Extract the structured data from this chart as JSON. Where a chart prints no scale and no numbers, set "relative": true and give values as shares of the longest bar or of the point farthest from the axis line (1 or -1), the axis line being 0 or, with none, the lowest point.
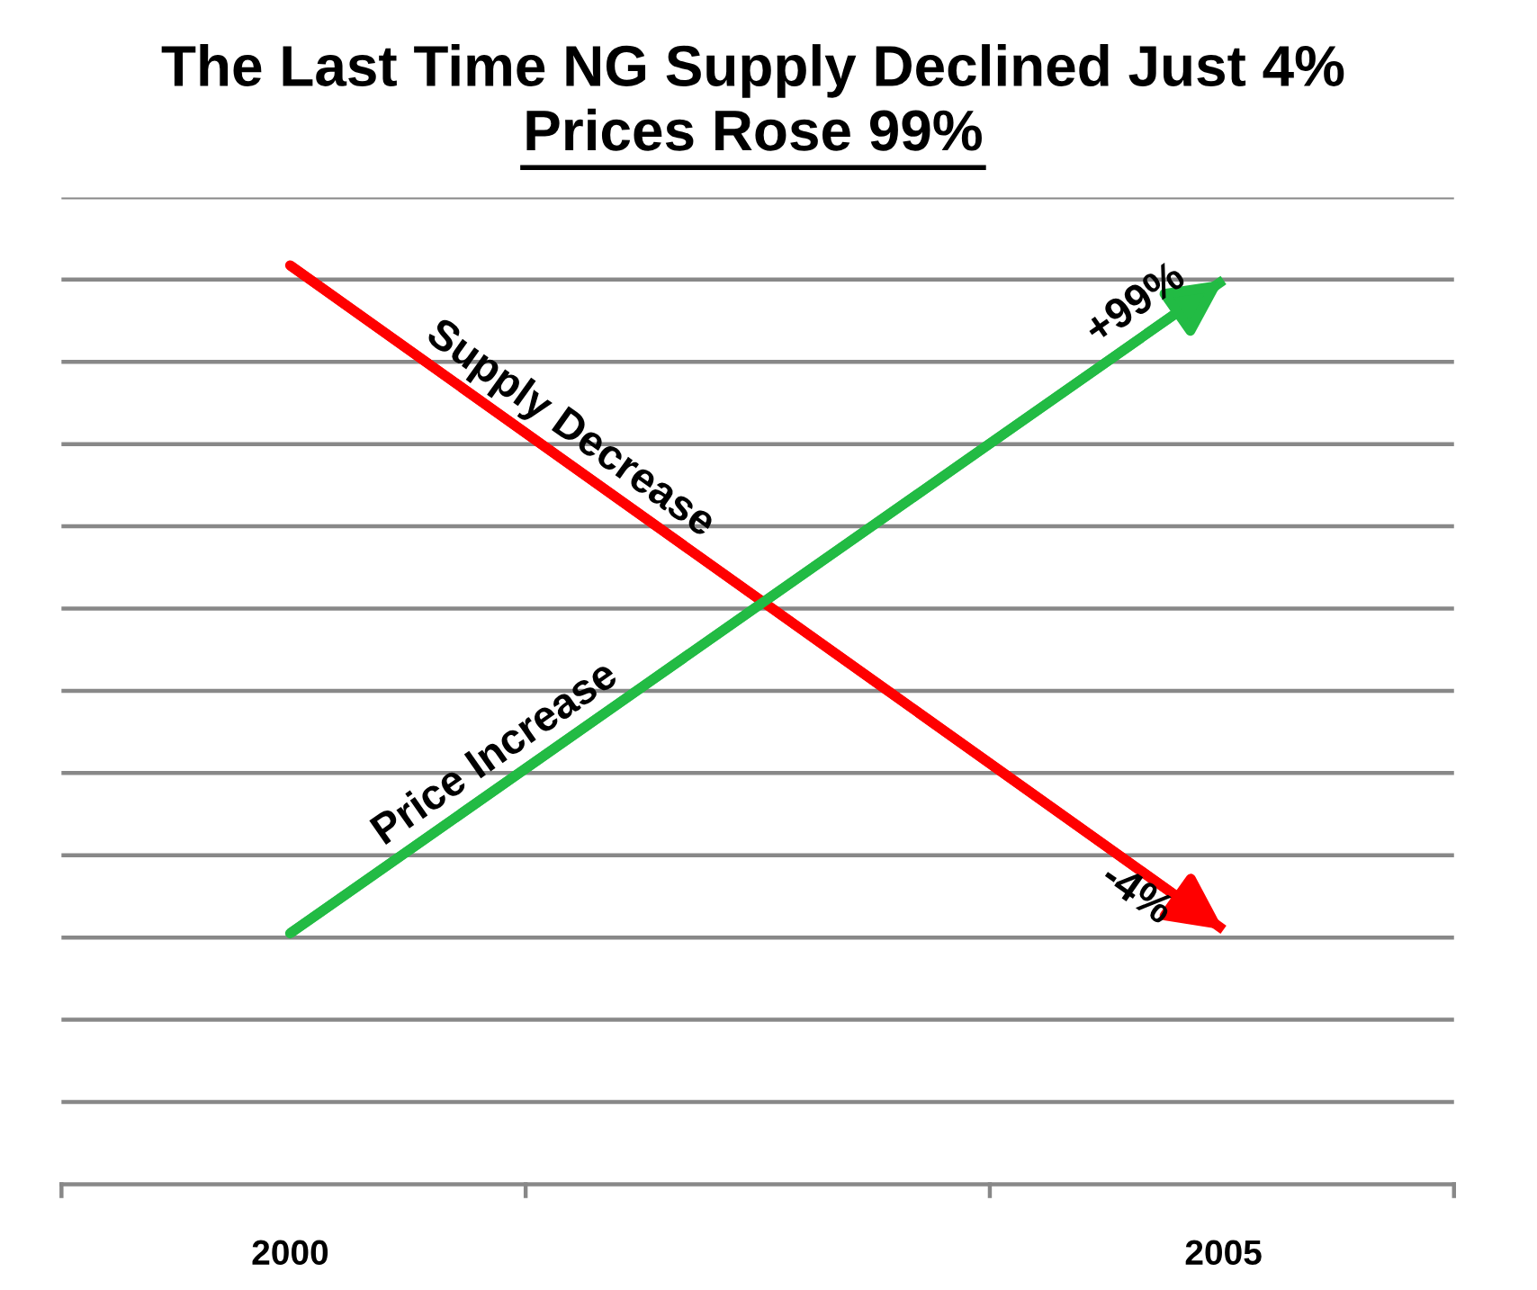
{
  "chart_data": {
    "type": "line",
    "title": "The Last Time NG Supply Declined Just 4%",
    "subtitle": "Prices Rose 99%",
    "relative": true,
    "categories": [
      "2000",
      "2005"
    ],
    "series": [
      {
        "name": "Supply Decrease",
        "color": "#ff0000",
        "values": [
          1,
          0.277
        ]
      },
      {
        "name": "Price Increase",
        "color": "#22bb44",
        "values": [
          0.273,
          0.984
        ]
      }
    ],
    "annotations": [
      {
        "text": "+99%",
        "x": "2005",
        "y": 0.984
      },
      {
        "text": "-4%",
        "x": "2005",
        "y": 0.277
      }
    ],
    "grid": "y",
    "marker": "none",
    "line_style": "solid",
    "legend": false
  }
}
